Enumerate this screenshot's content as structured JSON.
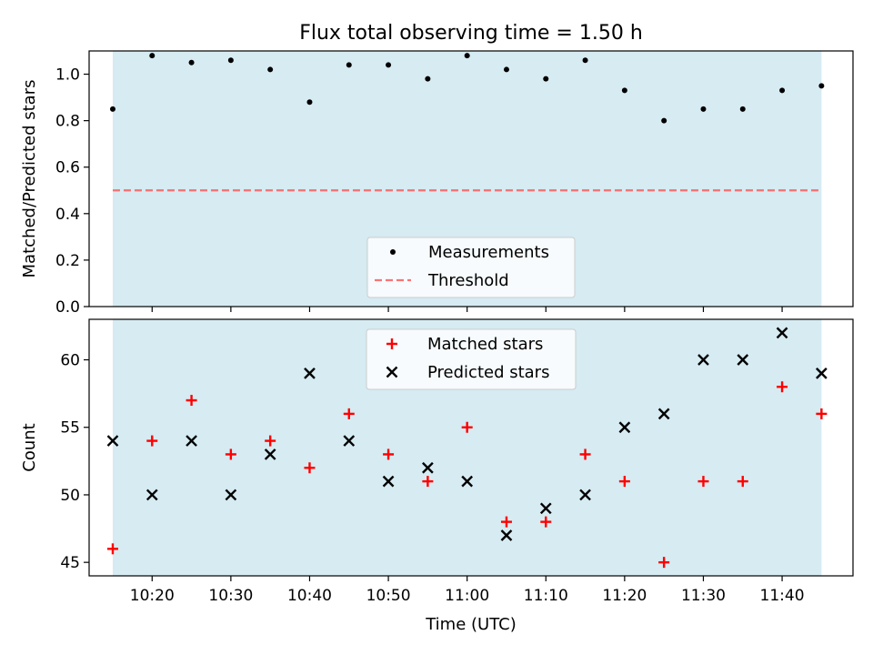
{
  "chart_data": [
    {
      "type": "scatter",
      "title": "Flux total observing time = 1.50 h",
      "ylabel": "Matched/Predicted stars",
      "xlabel": "",
      "ylim": [
        0.0,
        1.1
      ],
      "xlim": [
        "10:12:00",
        "11:49:00"
      ],
      "yticks": [
        "0.0",
        "0.2",
        "0.4",
        "0.6",
        "0.8",
        "1.0"
      ],
      "shaded_range": [
        "10:15:00",
        "11:45:00"
      ],
      "shade_color": "#add8e6",
      "grid": false,
      "legend_position": "lower center",
      "series": [
        {
          "name": "Measurements",
          "marker": "dot",
          "color": "#000000",
          "x": [
            "10:15",
            "10:20",
            "10:25",
            "10:30",
            "10:35",
            "10:40",
            "10:45",
            "10:50",
            "10:55",
            "11:00",
            "11:05",
            "11:10",
            "11:15",
            "11:20",
            "11:25",
            "11:30",
            "11:35",
            "11:40",
            "11:45"
          ],
          "y": [
            0.85,
            1.08,
            1.05,
            1.06,
            1.02,
            0.88,
            1.04,
            1.04,
            0.98,
            1.08,
            1.02,
            0.98,
            1.06,
            0.93,
            0.8,
            0.85,
            0.85,
            0.93,
            0.95
          ]
        },
        {
          "name": "Threshold",
          "line_style": "dashed",
          "color": "#ff5050",
          "x": [
            "10:15",
            "11:45"
          ],
          "y": [
            0.5,
            0.5
          ]
        }
      ]
    },
    {
      "type": "scatter",
      "title": "",
      "ylabel": "Count",
      "xlabel": "Time (UTC)",
      "ylim": [
        44,
        63
      ],
      "xlim": [
        "10:12:00",
        "11:49:00"
      ],
      "yticks": [
        "45",
        "50",
        "55",
        "60"
      ],
      "xticks": [
        "10:20",
        "10:30",
        "10:40",
        "10:50",
        "11:00",
        "11:10",
        "11:20",
        "11:30",
        "11:40"
      ],
      "shaded_range": [
        "10:15:00",
        "11:45:00"
      ],
      "shade_color": "#add8e6",
      "grid": false,
      "legend_position": "upper center",
      "series": [
        {
          "name": "Matched stars",
          "marker": "plus",
          "color": "#ff0000",
          "x": [
            "10:15",
            "10:20",
            "10:25",
            "10:30",
            "10:35",
            "10:40",
            "10:45",
            "10:50",
            "10:55",
            "11:00",
            "11:05",
            "11:10",
            "11:15",
            "11:20",
            "11:25",
            "11:30",
            "11:35",
            "11:40",
            "11:45"
          ],
          "y": [
            46,
            54,
            57,
            53,
            54,
            52,
            56,
            53,
            51,
            55,
            48,
            48,
            53,
            51,
            45,
            51,
            51,
            58,
            56
          ]
        },
        {
          "name": "Predicted stars",
          "marker": "x",
          "color": "#000000",
          "x": [
            "10:15",
            "10:20",
            "10:25",
            "10:30",
            "10:35",
            "10:40",
            "10:45",
            "10:50",
            "10:55",
            "11:00",
            "11:05",
            "11:10",
            "11:15",
            "11:20",
            "11:25",
            "11:30",
            "11:35",
            "11:40",
            "11:45"
          ],
          "y": [
            54,
            50,
            54,
            50,
            53,
            59,
            54,
            51,
            52,
            51,
            47,
            49,
            50,
            55,
            56,
            60,
            60,
            62,
            59
          ]
        }
      ]
    }
  ]
}
